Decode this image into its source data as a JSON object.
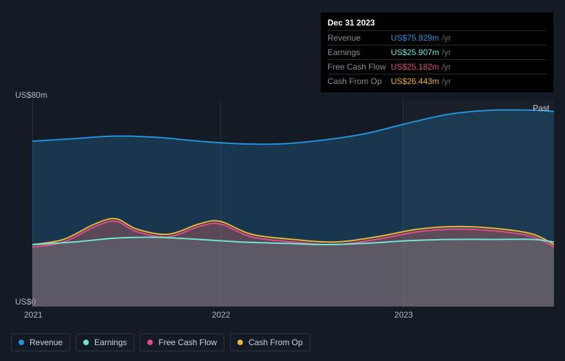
{
  "tooltip": {
    "date": "Dec 31 2023",
    "rows": [
      {
        "label": "Revenue",
        "value": "US$75.929m",
        "unit": "/yr",
        "color": "#2394df"
      },
      {
        "label": "Earnings",
        "value": "US$25.907m",
        "unit": "/yr",
        "color": "#71e7d6"
      },
      {
        "label": "Free Cash Flow",
        "value": "US$25.182m",
        "unit": "/yr",
        "color": "#e94a8a"
      },
      {
        "label": "Cash From Op",
        "value": "US$26.443m",
        "unit": "/yr",
        "color": "#eeb33b"
      }
    ]
  },
  "chart": {
    "type": "area",
    "background_color": "#151b24",
    "plot_background": "#151b24",
    "grid_color": "#2a323d",
    "y_axis": {
      "min": 0,
      "max": 80,
      "ticks": [
        {
          "value": 0,
          "label": "US$0"
        },
        {
          "value": 80,
          "label": "US$80m"
        }
      ],
      "label_color": "#b3b9c2",
      "label_fontsize": 12
    },
    "x_axis": {
      "ticks": [
        {
          "pos": 0.0,
          "label": "2021"
        },
        {
          "pos": 0.36,
          "label": "2022"
        },
        {
          "pos": 0.71,
          "label": "2023"
        }
      ],
      "label_color": "#b3b9c2",
      "label_fontsize": 12
    },
    "highlight_band": {
      "from": 0.71,
      "to": 1.0
    },
    "past_label": {
      "text": "Past",
      "x": 0.966,
      "y_value": 77
    },
    "series": [
      {
        "name": "Revenue",
        "color": "#2394df",
        "fill": "rgba(35,148,223,0.22)",
        "line_width": 2,
        "points": [
          {
            "x": 0.0,
            "y": 64
          },
          {
            "x": 0.08,
            "y": 65
          },
          {
            "x": 0.16,
            "y": 66
          },
          {
            "x": 0.24,
            "y": 65.5
          },
          {
            "x": 0.32,
            "y": 64
          },
          {
            "x": 0.4,
            "y": 63
          },
          {
            "x": 0.48,
            "y": 63
          },
          {
            "x": 0.56,
            "y": 64.5
          },
          {
            "x": 0.64,
            "y": 67
          },
          {
            "x": 0.72,
            "y": 71
          },
          {
            "x": 0.8,
            "y": 74.5
          },
          {
            "x": 0.88,
            "y": 76
          },
          {
            "x": 0.96,
            "y": 76
          },
          {
            "x": 1.0,
            "y": 75.5
          }
        ]
      },
      {
        "name": "Cash From Op",
        "color": "#eeb33b",
        "fill": "rgba(238,179,59,0.15)",
        "line_width": 2,
        "points": [
          {
            "x": 0.0,
            "y": 24
          },
          {
            "x": 0.06,
            "y": 26
          },
          {
            "x": 0.12,
            "y": 32
          },
          {
            "x": 0.16,
            "y": 34
          },
          {
            "x": 0.2,
            "y": 30
          },
          {
            "x": 0.26,
            "y": 28
          },
          {
            "x": 0.32,
            "y": 32
          },
          {
            "x": 0.36,
            "y": 33
          },
          {
            "x": 0.42,
            "y": 28
          },
          {
            "x": 0.5,
            "y": 26
          },
          {
            "x": 0.58,
            "y": 25
          },
          {
            "x": 0.66,
            "y": 27
          },
          {
            "x": 0.74,
            "y": 30
          },
          {
            "x": 0.82,
            "y": 31
          },
          {
            "x": 0.9,
            "y": 30
          },
          {
            "x": 0.96,
            "y": 28
          },
          {
            "x": 1.0,
            "y": 24
          }
        ]
      },
      {
        "name": "Free Cash Flow",
        "color": "#e94a8a",
        "fill": "rgba(233,74,138,0.20)",
        "line_width": 2,
        "points": [
          {
            "x": 0.0,
            "y": 23
          },
          {
            "x": 0.06,
            "y": 25
          },
          {
            "x": 0.12,
            "y": 31
          },
          {
            "x": 0.16,
            "y": 33
          },
          {
            "x": 0.2,
            "y": 29
          },
          {
            "x": 0.26,
            "y": 27
          },
          {
            "x": 0.32,
            "y": 31
          },
          {
            "x": 0.36,
            "y": 32
          },
          {
            "x": 0.42,
            "y": 27
          },
          {
            "x": 0.5,
            "y": 25
          },
          {
            "x": 0.58,
            "y": 24
          },
          {
            "x": 0.66,
            "y": 26
          },
          {
            "x": 0.74,
            "y": 29
          },
          {
            "x": 0.82,
            "y": 30
          },
          {
            "x": 0.9,
            "y": 29
          },
          {
            "x": 0.96,
            "y": 27
          },
          {
            "x": 1.0,
            "y": 23
          }
        ]
      },
      {
        "name": "Earnings",
        "color": "#71e7d6",
        "fill": "rgba(113,231,214,0.10)",
        "line_width": 2,
        "points": [
          {
            "x": 0.0,
            "y": 24
          },
          {
            "x": 0.08,
            "y": 25
          },
          {
            "x": 0.16,
            "y": 26.5
          },
          {
            "x": 0.24,
            "y": 26.8
          },
          {
            "x": 0.32,
            "y": 26
          },
          {
            "x": 0.4,
            "y": 25
          },
          {
            "x": 0.48,
            "y": 24.5
          },
          {
            "x": 0.56,
            "y": 24
          },
          {
            "x": 0.64,
            "y": 24.5
          },
          {
            "x": 0.72,
            "y": 25.5
          },
          {
            "x": 0.8,
            "y": 26
          },
          {
            "x": 0.88,
            "y": 26
          },
          {
            "x": 0.96,
            "y": 26
          },
          {
            "x": 1.0,
            "y": 25
          }
        ]
      }
    ]
  },
  "legend": [
    {
      "label": "Revenue",
      "color": "#2394df"
    },
    {
      "label": "Earnings",
      "color": "#71e7d6"
    },
    {
      "label": "Free Cash Flow",
      "color": "#e94a8a"
    },
    {
      "label": "Cash From Op",
      "color": "#eeb33b"
    }
  ]
}
